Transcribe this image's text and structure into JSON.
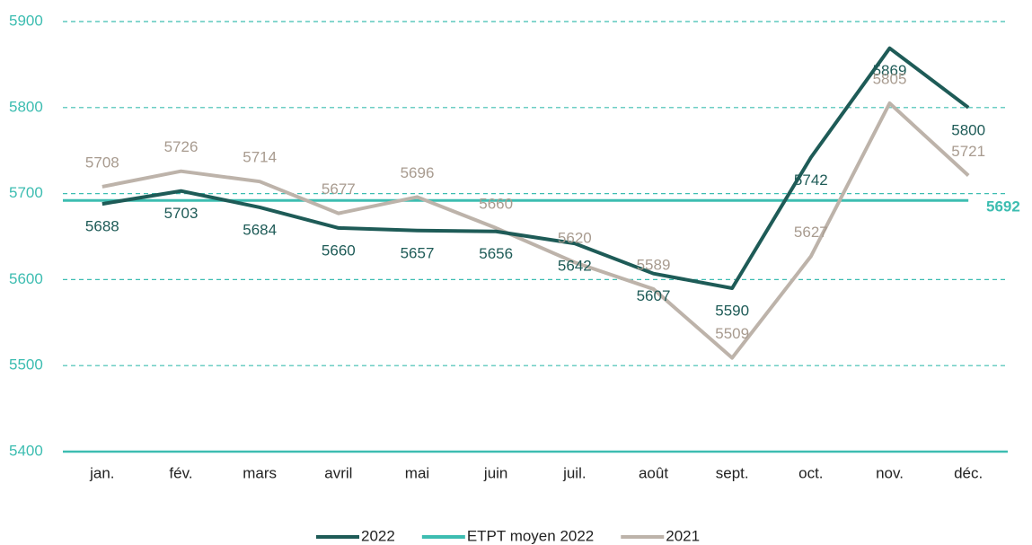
{
  "chart_data": {
    "type": "line",
    "categories": [
      "jan.",
      "fév.",
      "mars",
      "avril",
      "mai",
      "juin",
      "juil.",
      "août",
      "sept.",
      "oct.",
      "nov.",
      "déc."
    ],
    "series": [
      {
        "name": "2022",
        "color": "#1e5b57",
        "values": [
          5688,
          5703,
          5684,
          5660,
          5657,
          5656,
          5642,
          5607,
          5590,
          5742,
          5869,
          5800
        ]
      },
      {
        "name": "ETPT moyen 2022",
        "color": "#3dbdb1",
        "value": 5692
      },
      {
        "name": "2021",
        "color": "#bdb3aa",
        "values": [
          5708,
          5726,
          5714,
          5677,
          5696,
          5660,
          5620,
          5589,
          5509,
          5627,
          5805,
          5721
        ]
      }
    ],
    "ylim": [
      5400,
      5900
    ],
    "yticks": [
      5400,
      5500,
      5600,
      5700,
      5800,
      5900
    ],
    "grid": true
  }
}
